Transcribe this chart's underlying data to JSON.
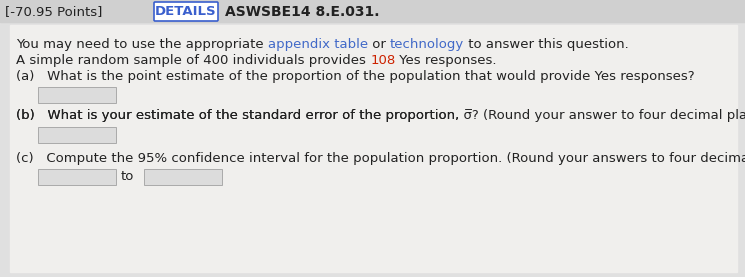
{
  "bg_color": "#e0e0e0",
  "content_bg": "#f0efed",
  "header_bg": "#d0d0d0",
  "details_box_color": "#ffffff",
  "details_border_color": "#3a5fcd",
  "details_label": "DETAILS",
  "problem_id": "ASWSBE14 8.E.031.",
  "header_left": "[-70.95 Points]",
  "line1_plain1": "You may need to use the appropriate ",
  "line1_link1": "appendix table",
  "line1_mid": " or ",
  "line1_link2": "technology",
  "line1_end": " to answer this question.",
  "line1_link_color": "#4169c8",
  "line2_plain1": "A simple random sample of 400 individuals provides ",
  "line2_highlight": "108",
  "line2_end": " Yes responses.",
  "line2_highlight_color": "#cc2200",
  "text_color": "#222222",
  "input_box_color": "#dcdcdc",
  "input_box_border": "#aaaaaa",
  "qa_indent": 30,
  "qa_input_indent": 40,
  "font_size": 9.5,
  "font_size_header": 9.5
}
